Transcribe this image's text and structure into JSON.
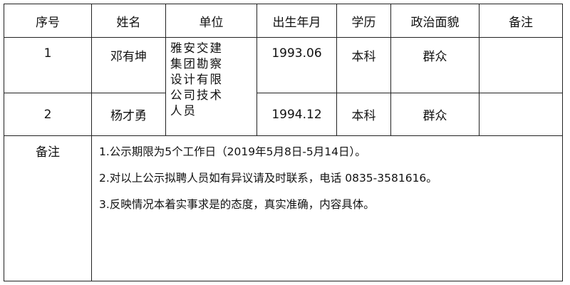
{
  "headers": [
    "序号",
    "姓名",
    "单位",
    "出生年月",
    "学历",
    "政治面貌",
    "备注"
  ],
  "rows": [
    {
      "no": "1",
      "name": "邓有坤",
      "birth": "1993.06",
      "education": "本科",
      "political": "群众",
      "remark": ""
    },
    {
      "no": "2",
      "name": "杨才勇",
      "birth": "1994.12",
      "education": "本科",
      "political": "群众",
      "remark": ""
    }
  ],
  "unit_lines": [
    "雅安交建",
    "集团勘察",
    "设计有限",
    "公司技术",
    "人员"
  ],
  "notes": {
    "label": "备注",
    "lines": [
      "1.公示期限为5个工作日（2019年5月8日-5月14日）。",
      "2.对以上公示拟聘人员如有异议请及时联系，电话 0835-3581616。",
      "3.反映情况本着实事求是的态度，真实准确，内容具体。"
    ]
  }
}
